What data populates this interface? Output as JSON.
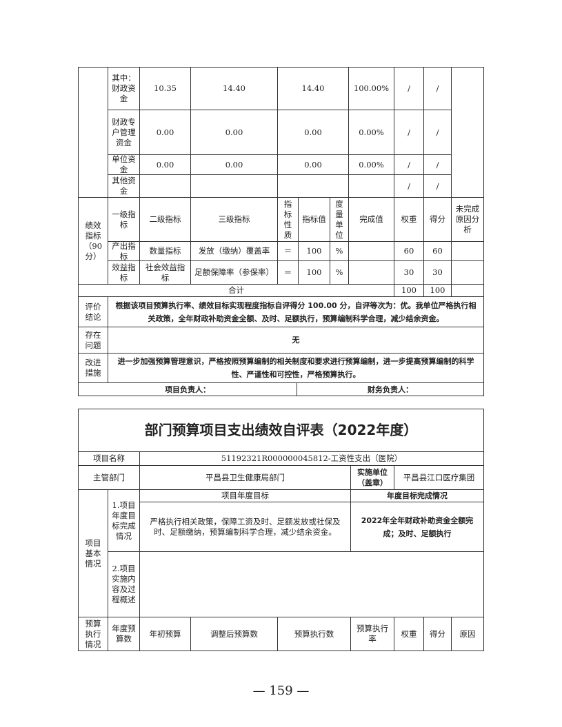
{
  "funding_rows": [
    {
      "label": "其中：财政资金",
      "initial": "10.35",
      "adjusted": "14.40",
      "executed": "14.40",
      "rate": "100.00%",
      "weight": "/",
      "score": "/"
    },
    {
      "label": "财政专户管理资金",
      "initial": "0.00",
      "adjusted": "0.00",
      "executed": "0.00",
      "rate": "0.00%",
      "weight": "/",
      "score": "/"
    },
    {
      "label": "单位资金",
      "initial": "0.00",
      "adjusted": "0.00",
      "executed": "0.00",
      "rate": "0.00%",
      "weight": "/",
      "score": "/"
    },
    {
      "label": "其他资金",
      "initial": "",
      "adjusted": "",
      "executed": "",
      "rate": "",
      "weight": "/",
      "score": "/"
    }
  ],
  "indicators": {
    "section_label": "绩效指标（90分）",
    "headers": [
      "一级指标",
      "二级指标",
      "三级指标",
      "指标性质",
      "指标值",
      "度量单位",
      "完成值",
      "权重",
      "得分",
      "未完成原因分析"
    ],
    "rows": [
      {
        "level1": "产出指标",
        "level2": "数量指标",
        "level3": "发放（缴纳）覆盖率",
        "nature": "＝",
        "value": "100",
        "unit": "%",
        "actual": "",
        "weight": "60",
        "score": "60",
        "reason": ""
      },
      {
        "level1": "效益指标",
        "level2": "社会效益指标",
        "level3": "足额保障率（参保率）",
        "nature": "＝",
        "value": "100",
        "unit": "%",
        "actual": "",
        "weight": "30",
        "score": "30",
        "reason": ""
      }
    ],
    "total_label": "合计",
    "total_weight": "100",
    "total_score": "100"
  },
  "conclusion": {
    "label": "评价结论",
    "text": "根据该项目预算执行率、绩效目标实现程度指标自评得分 100.00 分，自评等次为：优。我单位严格执行相关政策，全年财政补助资金全额、及时、足额执行，预算编制科学合理，减少结余资金。"
  },
  "problems": {
    "label": "存在问题",
    "text": "无"
  },
  "improvements": {
    "label": "改进措施",
    "text": "进一步加强预算管理意识，严格按照预算编制的相关制度和要求进行预算编制，进一步提高预算编制的科学性、严谨性和可控性，严格预算执行。"
  },
  "signatures": {
    "project_lead": "项目负责人：",
    "finance_lead": "财务负责人："
  },
  "form2": {
    "title": "部门预算项目支出绩效自评表（2022年度）",
    "project_name_label": "项目名称",
    "project_name": "51192321R000000045812-工资性支出（医院）",
    "dept_label": "主管部门",
    "dept": "平昌县卫生健康局部门",
    "impl_label": "实施单位（盖章）",
    "impl": "平昌县江口医疗集团",
    "basic_label": "项目基本情况",
    "goal_label": "1.项目年度目标完成情况",
    "goal_header": "项目年度目标",
    "completion_header": "年度目标完成情况",
    "goal_text": "严格执行相关政策，保障工资及时、足额发放或社保及时、足额缴纳，预算编制科学合理，减少结余资金。",
    "completion_text": "2022年全年财政补助资金全额完成；及时、足额执行",
    "impl_content_label": "2.项目实施内容及过程概述",
    "impl_content": "",
    "budget_label": "预算执行情况",
    "budget_headers": [
      "年度预算数",
      "年初预算",
      "调整后预算数",
      "预算执行数",
      "预算执行率",
      "权重",
      "得分",
      "原因"
    ]
  },
  "page_number": "— 159 —"
}
